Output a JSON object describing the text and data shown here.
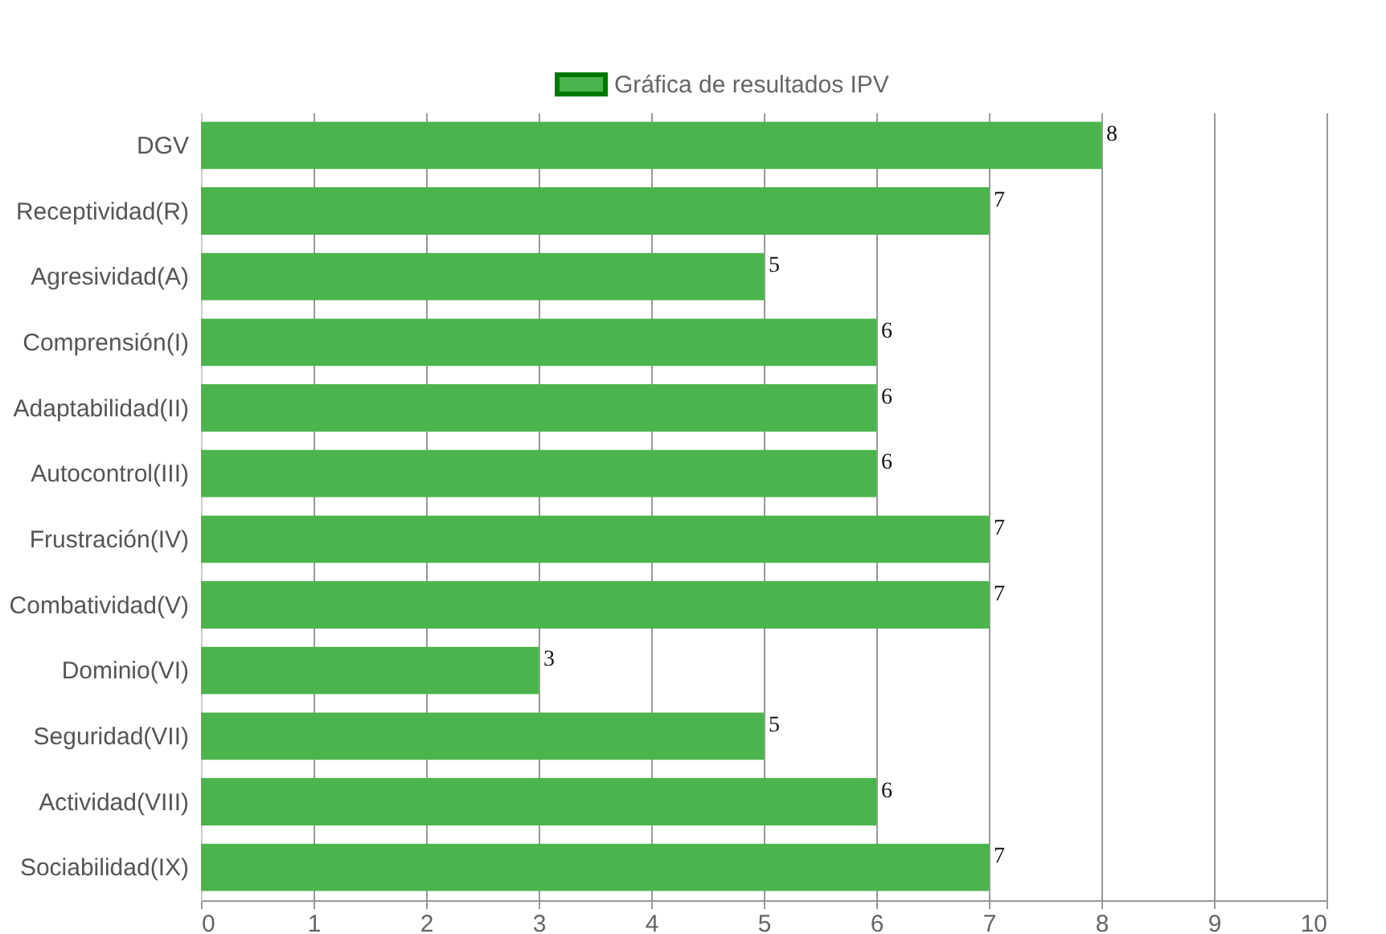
{
  "chart_data": {
    "type": "bar",
    "orientation": "horizontal",
    "categories": [
      "DGV",
      "Receptividad(R)",
      "Agresividad(A)",
      "Comprensión(I)",
      "Adaptabilidad(II)",
      "Autocontrol(III)",
      "Frustración(IV)",
      "Combatividad(V)",
      "Dominio(VI)",
      "Seguridad(VII)",
      "Actividad(VIII)",
      "Sociabilidad(IX)"
    ],
    "series": [
      {
        "name": "Gráfica de resultados IPV",
        "color": "#4cb44c",
        "values": [
          8,
          7,
          5,
          6,
          6,
          6,
          7,
          7,
          3,
          5,
          6,
          7
        ]
      }
    ],
    "xlim": [
      0,
      10
    ],
    "xticks": [
      0,
      1,
      2,
      3,
      4,
      5,
      6,
      7,
      8,
      9,
      10
    ],
    "grid": "x",
    "legend": "top",
    "data_labels": true
  }
}
